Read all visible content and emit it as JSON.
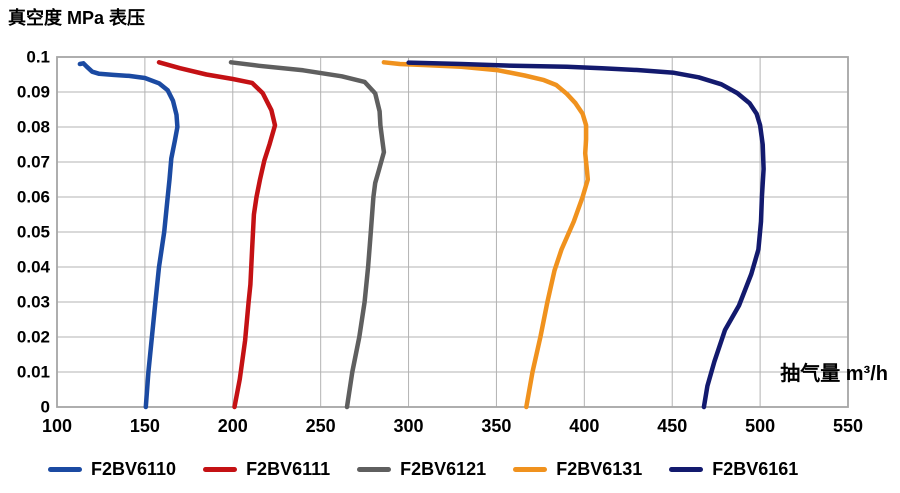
{
  "title": "真空度 MPa 表压",
  "x_axis_label": "抽气量 m³/h",
  "chart_data": {
    "type": "line",
    "title": "真空度 MPa 表压",
    "ylabel": "真空度 MPa 表压",
    "xlabel": "抽气量 m³/h",
    "xlim": [
      100,
      550
    ],
    "ylim": [
      0,
      0.1
    ],
    "grid": true,
    "legend_position": "bottom",
    "grid_color": "#b3b3b3",
    "axis_color": "#a6a6a6",
    "x_ticks": [
      100,
      150,
      200,
      250,
      300,
      350,
      400,
      450,
      500,
      550
    ],
    "x_tick_labels": [
      "100",
      "150",
      "200",
      "250",
      "300",
      "350",
      "400",
      "450",
      "500",
      "550"
    ],
    "y_ticks": [
      0,
      0.01,
      0.02,
      0.03,
      0.04,
      0.05,
      0.06,
      0.07,
      0.08,
      0.09,
      0.1
    ],
    "y_tick_labels": [
      "0",
      "0.01",
      "0.02",
      "0.03",
      "0.04",
      "0.05",
      "0.06",
      "0.07",
      "0.08",
      "0.09",
      "0.1"
    ],
    "series": [
      {
        "name": "F2BV6110",
        "color": "#1b4aa2",
        "points": [
          [
            113,
            0.098
          ],
          [
            115,
            0.0982
          ],
          [
            117,
            0.0972
          ],
          [
            120,
            0.0958
          ],
          [
            124,
            0.0952
          ],
          [
            132,
            0.0949
          ],
          [
            141,
            0.0946
          ],
          [
            150,
            0.094
          ],
          [
            158,
            0.0925
          ],
          [
            163,
            0.0905
          ],
          [
            166,
            0.0875
          ],
          [
            168,
            0.0835
          ],
          [
            168.5,
            0.08
          ],
          [
            167,
            0.076
          ],
          [
            165,
            0.071
          ],
          [
            164,
            0.065
          ],
          [
            163,
            0.06
          ],
          [
            161,
            0.05
          ],
          [
            158,
            0.04
          ],
          [
            156,
            0.03
          ],
          [
            154,
            0.02
          ],
          [
            152,
            0.01
          ],
          [
            150.5,
            0
          ]
        ]
      },
      {
        "name": "F2BV6111",
        "color": "#c41114",
        "points": [
          [
            158,
            0.0985
          ],
          [
            170,
            0.0968
          ],
          [
            185,
            0.095
          ],
          [
            200,
            0.0937
          ],
          [
            211,
            0.0926
          ],
          [
            217,
            0.0897
          ],
          [
            222,
            0.0848
          ],
          [
            224,
            0.0805
          ],
          [
            221,
            0.0752
          ],
          [
            218,
            0.0705
          ],
          [
            215.5,
            0.065
          ],
          [
            213.5,
            0.06
          ],
          [
            212,
            0.055
          ],
          [
            211,
            0.045
          ],
          [
            210,
            0.035
          ],
          [
            209,
            0.03
          ],
          [
            207,
            0.019
          ],
          [
            204,
            0.008
          ],
          [
            201,
            0
          ]
        ]
      },
      {
        "name": "F2BV6121",
        "color": "#5f5f5f",
        "points": [
          [
            199,
            0.0985
          ],
          [
            215,
            0.0975
          ],
          [
            240,
            0.0962
          ],
          [
            262,
            0.0945
          ],
          [
            275,
            0.0929
          ],
          [
            281,
            0.0896
          ],
          [
            283.5,
            0.0845
          ],
          [
            284,
            0.0805
          ],
          [
            285,
            0.0765
          ],
          [
            286,
            0.0728
          ],
          [
            283,
            0.0675
          ],
          [
            281,
            0.064
          ],
          [
            280,
            0.06
          ],
          [
            278.5,
            0.05
          ],
          [
            277,
            0.04
          ],
          [
            275,
            0.03
          ],
          [
            272,
            0.02
          ],
          [
            268,
            0.01
          ],
          [
            265,
            0
          ]
        ]
      },
      {
        "name": "F2BV6131",
        "color": "#f0921e",
        "points": [
          [
            286,
            0.0985
          ],
          [
            295,
            0.098
          ],
          [
            310,
            0.0977
          ],
          [
            330,
            0.0972
          ],
          [
            351,
            0.0962
          ],
          [
            366,
            0.0947
          ],
          [
            377,
            0.0934
          ],
          [
            384,
            0.092
          ],
          [
            390,
            0.0895
          ],
          [
            395,
            0.0868
          ],
          [
            399,
            0.0838
          ],
          [
            401,
            0.0805
          ],
          [
            401,
            0.0765
          ],
          [
            400.5,
            0.0725
          ],
          [
            401.5,
            0.0675
          ],
          [
            402,
            0.065
          ],
          [
            399,
            0.06
          ],
          [
            394,
            0.053
          ],
          [
            387,
            0.045
          ],
          [
            383,
            0.039
          ],
          [
            379,
            0.03
          ],
          [
            375,
            0.02
          ],
          [
            370.5,
            0.01
          ],
          [
            367,
            0
          ]
        ]
      },
      {
        "name": "F2BV6161",
        "color": "#131a6e",
        "points": [
          [
            300,
            0.0984
          ],
          [
            330,
            0.098
          ],
          [
            360,
            0.0975
          ],
          [
            390,
            0.0972
          ],
          [
            410,
            0.0968
          ],
          [
            430,
            0.0963
          ],
          [
            451,
            0.0955
          ],
          [
            465,
            0.0942
          ],
          [
            478,
            0.0922
          ],
          [
            487,
            0.0897
          ],
          [
            494,
            0.0868
          ],
          [
            498,
            0.0838
          ],
          [
            500,
            0.0805
          ],
          [
            501.5,
            0.075
          ],
          [
            502,
            0.068
          ],
          [
            501,
            0.06
          ],
          [
            500.5,
            0.053
          ],
          [
            499,
            0.045
          ],
          [
            495,
            0.038
          ],
          [
            488,
            0.029
          ],
          [
            480,
            0.022
          ],
          [
            474,
            0.013
          ],
          [
            470,
            0.006
          ],
          [
            468,
            0
          ]
        ]
      }
    ]
  }
}
